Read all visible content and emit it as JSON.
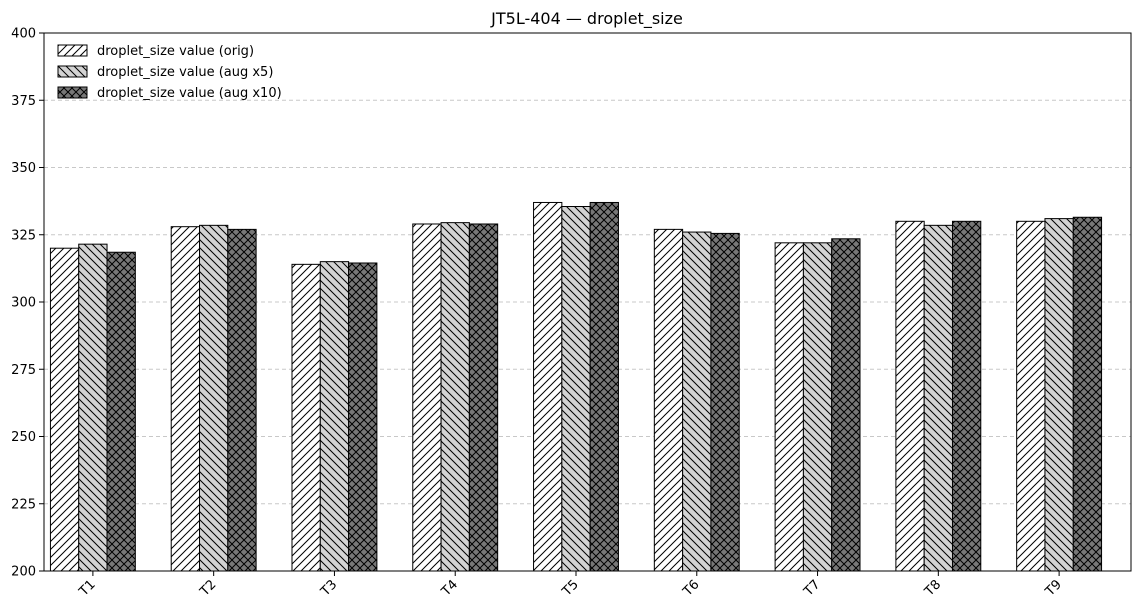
{
  "chart_data": {
    "type": "bar",
    "title": "JT5L-404 — droplet_size",
    "xlabel": "",
    "ylabel": "",
    "ylim": [
      200,
      400
    ],
    "yticks": [
      200,
      225,
      250,
      275,
      300,
      325,
      350,
      375,
      400
    ],
    "grid": "y-dashed",
    "legend_position": "top-left",
    "categories": [
      "T1",
      "T2",
      "T3",
      "T4",
      "T5",
      "T6",
      "T7",
      "T8",
      "T9"
    ],
    "series": [
      {
        "name": "droplet_size value (orig)",
        "pattern": "forward-diagonal",
        "color": "#ffffff",
        "values": [
          320,
          328,
          314,
          329,
          337,
          327,
          322,
          330,
          330
        ]
      },
      {
        "name": "droplet_size value (aug x5)",
        "pattern": "back-diagonal",
        "color": "#d3d3d3",
        "values": [
          321.5,
          328.5,
          315,
          329.5,
          335.5,
          326,
          322,
          328.5,
          331
        ]
      },
      {
        "name": "droplet_size value (aug x10)",
        "pattern": "crosshatch",
        "color": "#777777",
        "values": [
          318.5,
          327,
          314.5,
          329,
          337,
          325.5,
          323.5,
          330,
          331.5
        ]
      }
    ]
  }
}
